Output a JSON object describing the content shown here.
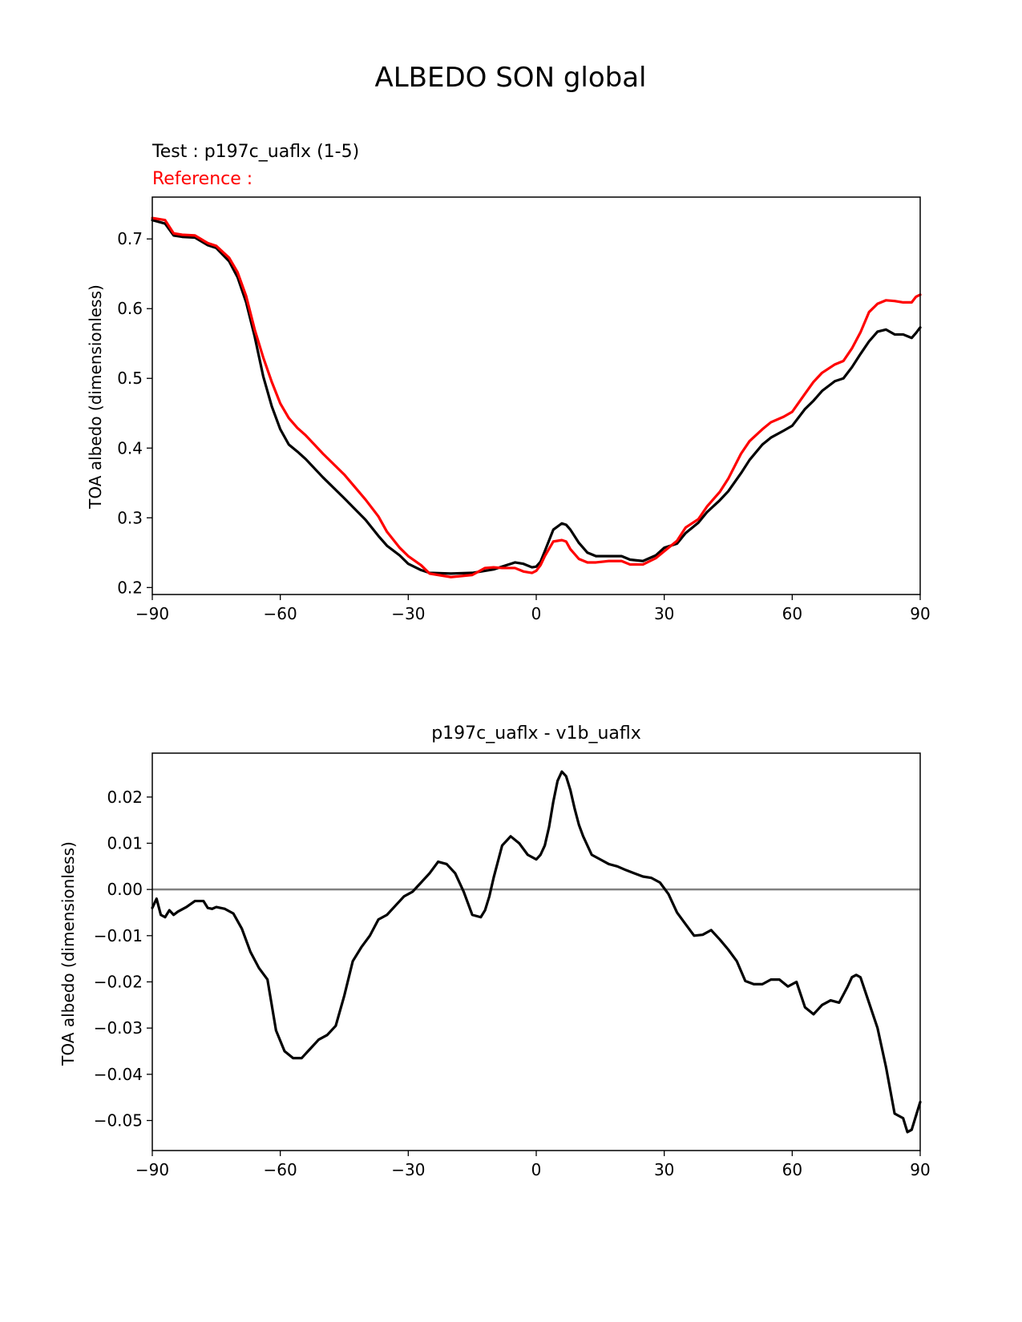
{
  "figure": {
    "suptitle": "ALBEDO SON global"
  },
  "chart_data": [
    {
      "type": "line",
      "title_test": "Test : p197c_uaflx (1-5)",
      "title_reference": "Reference :",
      "xlabel": "",
      "ylabel": "TOA albedo (dimensionless)",
      "xlim": [
        -90,
        90
      ],
      "ylim": [
        0.19,
        0.76
      ],
      "xticks": [
        -90,
        -60,
        -30,
        0,
        30,
        60,
        90
      ],
      "xtick_labels": [
        "−90",
        "−60",
        "−30",
        "0",
        "30",
        "60",
        "90"
      ],
      "yticks": [
        0.2,
        0.3,
        0.4,
        0.5,
        0.6,
        0.7
      ],
      "ytick_labels": [
        "0.2",
        "0.3",
        "0.4",
        "0.5",
        "0.6",
        "0.7"
      ],
      "grid": false,
      "series": [
        {
          "color": "#000000",
          "x": [
            -90,
            -87,
            -85,
            -83,
            -80,
            -77,
            -75,
            -72,
            -70,
            -68,
            -66,
            -64,
            -62,
            -60,
            -58,
            -56,
            -54,
            -50,
            -45,
            -40,
            -37,
            -35,
            -32,
            -30,
            -27,
            -25,
            -20,
            -15,
            -10,
            -5,
            -3,
            -1,
            0,
            1,
            2,
            4,
            6,
            7,
            8,
            10,
            12,
            14,
            17,
            20,
            22,
            25,
            28,
            30,
            33,
            35,
            38,
            40,
            43,
            45,
            48,
            50,
            53,
            55,
            58,
            60,
            63,
            65,
            67,
            70,
            72,
            74,
            76,
            78,
            80,
            82,
            84,
            86,
            88,
            89,
            90
          ],
          "y": [
            0.727,
            0.722,
            0.705,
            0.703,
            0.702,
            0.691,
            0.687,
            0.668,
            0.645,
            0.609,
            0.56,
            0.503,
            0.46,
            0.427,
            0.405,
            0.395,
            0.384,
            0.358,
            0.328,
            0.297,
            0.274,
            0.26,
            0.246,
            0.234,
            0.225,
            0.221,
            0.22,
            0.221,
            0.226,
            0.236,
            0.234,
            0.229,
            0.23,
            0.237,
            0.252,
            0.283,
            0.292,
            0.29,
            0.283,
            0.264,
            0.25,
            0.245,
            0.245,
            0.245,
            0.24,
            0.238,
            0.246,
            0.257,
            0.263,
            0.278,
            0.293,
            0.308,
            0.325,
            0.338,
            0.364,
            0.383,
            0.405,
            0.415,
            0.425,
            0.432,
            0.456,
            0.468,
            0.482,
            0.496,
            0.5,
            0.516,
            0.535,
            0.553,
            0.567,
            0.57,
            0.563,
            0.563,
            0.558,
            0.565,
            0.573
          ]
        },
        {
          "color": "#ff0000",
          "x": [
            -90,
            -87,
            -85,
            -83,
            -80,
            -77,
            -75,
            -72,
            -70,
            -68,
            -66,
            -64,
            -62,
            -60,
            -58,
            -56,
            -54,
            -50,
            -45,
            -40,
            -37,
            -35,
            -32,
            -30,
            -27,
            -25,
            -20,
            -15,
            -12,
            -10,
            -8,
            -5,
            -3,
            -1,
            0,
            1,
            2,
            4,
            6,
            7,
            8,
            10,
            12,
            14,
            17,
            20,
            22,
            25,
            28,
            30,
            33,
            35,
            38,
            40,
            43,
            45,
            48,
            50,
            53,
            55,
            58,
            60,
            63,
            65,
            67,
            70,
            72,
            74,
            76,
            78,
            80,
            82,
            84,
            86,
            88,
            89,
            90
          ],
          "y": [
            0.73,
            0.727,
            0.708,
            0.706,
            0.705,
            0.694,
            0.69,
            0.673,
            0.652,
            0.618,
            0.57,
            0.53,
            0.495,
            0.464,
            0.443,
            0.429,
            0.418,
            0.392,
            0.362,
            0.326,
            0.302,
            0.28,
            0.257,
            0.245,
            0.232,
            0.22,
            0.215,
            0.218,
            0.228,
            0.229,
            0.228,
            0.228,
            0.223,
            0.221,
            0.224,
            0.232,
            0.245,
            0.266,
            0.268,
            0.266,
            0.255,
            0.241,
            0.236,
            0.236,
            0.238,
            0.238,
            0.233,
            0.233,
            0.242,
            0.252,
            0.267,
            0.286,
            0.298,
            0.316,
            0.337,
            0.356,
            0.392,
            0.41,
            0.427,
            0.437,
            0.445,
            0.452,
            0.478,
            0.495,
            0.508,
            0.52,
            0.525,
            0.543,
            0.566,
            0.595,
            0.607,
            0.612,
            0.611,
            0.609,
            0.609,
            0.617,
            0.62
          ]
        }
      ]
    },
    {
      "type": "line",
      "title": "p197c_uaflx - v1b_uaflx",
      "xlabel": "",
      "ylabel": "TOA albedo (dimensionless)",
      "xlim": [
        -90,
        90
      ],
      "ylim": [
        -0.0565,
        0.0295
      ],
      "xticks": [
        -90,
        -60,
        -30,
        0,
        30,
        60,
        90
      ],
      "xtick_labels": [
        "−90",
        "−60",
        "−30",
        "0",
        "30",
        "60",
        "90"
      ],
      "yticks": [
        0.02,
        0.01,
        0.0,
        -0.01,
        -0.02,
        -0.03,
        -0.04,
        -0.05
      ],
      "ytick_labels": [
        "0.02",
        "0.01",
        "0.00",
        "−0.01",
        "−0.02",
        "−0.03",
        "−0.04",
        "−0.05"
      ],
      "grid": false,
      "zero_line_color": "#808080",
      "series": [
        {
          "color": "#000000",
          "x": [
            -90,
            -89,
            -88,
            -87,
            -86,
            -85,
            -84,
            -82,
            -80,
            -78,
            -77,
            -76,
            -75,
            -73,
            -71,
            -69,
            -67,
            -65,
            -63,
            -61,
            -59,
            -57,
            -55,
            -53,
            -51,
            -49,
            -47,
            -45,
            -43,
            -41,
            -39,
            -37,
            -35,
            -33,
            -31,
            -29,
            -27,
            -25,
            -23,
            -21,
            -19,
            -17,
            -15,
            -13,
            -12,
            -11,
            -10,
            -8,
            -6,
            -4,
            -2,
            0,
            1,
            2,
            3,
            4,
            5,
            6,
            7,
            8,
            9,
            10,
            11,
            13,
            15,
            17,
            19,
            21,
            23,
            25,
            27,
            29,
            31,
            33,
            35,
            37,
            39,
            41,
            43,
            45,
            47,
            49,
            51,
            53,
            55,
            57,
            59,
            61,
            63,
            65,
            67,
            69,
            71,
            73,
            74,
            75,
            76,
            78,
            80,
            82,
            84,
            86,
            87,
            88,
            89,
            90
          ],
          "y": [
            -0.004,
            -0.002,
            -0.0055,
            -0.006,
            -0.0045,
            -0.0055,
            -0.0048,
            -0.0038,
            -0.0025,
            -0.0025,
            -0.004,
            -0.0042,
            -0.0038,
            -0.0042,
            -0.0052,
            -0.0085,
            -0.0135,
            -0.017,
            -0.0195,
            -0.0305,
            -0.035,
            -0.0365,
            -0.0365,
            -0.0345,
            -0.0325,
            -0.0315,
            -0.0295,
            -0.023,
            -0.0155,
            -0.0125,
            -0.01,
            -0.0065,
            -0.0055,
            -0.0035,
            -0.0015,
            -0.0005,
            0.0015,
            0.0035,
            0.006,
            0.0055,
            0.0035,
            -0.0005,
            -0.0055,
            -0.006,
            -0.0045,
            -0.0015,
            0.0025,
            0.0095,
            0.0115,
            0.01,
            0.0075,
            0.0065,
            0.0075,
            0.0095,
            0.0135,
            0.019,
            0.0235,
            0.0255,
            0.0245,
            0.0215,
            0.0175,
            0.014,
            0.0115,
            0.0075,
            0.0065,
            0.0055,
            0.005,
            0.0042,
            0.0035,
            0.0028,
            0.0025,
            0.0015,
            -0.001,
            -0.005,
            -0.0075,
            -0.01,
            -0.0098,
            -0.0088,
            -0.0108,
            -0.013,
            -0.0155,
            -0.0198,
            -0.0205,
            -0.0205,
            -0.0195,
            -0.0195,
            -0.021,
            -0.02,
            -0.0255,
            -0.027,
            -0.025,
            -0.024,
            -0.0245,
            -0.021,
            -0.019,
            -0.0185,
            -0.019,
            -0.0245,
            -0.03,
            -0.0385,
            -0.0485,
            -0.0495,
            -0.0525,
            -0.052,
            -0.049,
            -0.046
          ]
        }
      ]
    }
  ]
}
